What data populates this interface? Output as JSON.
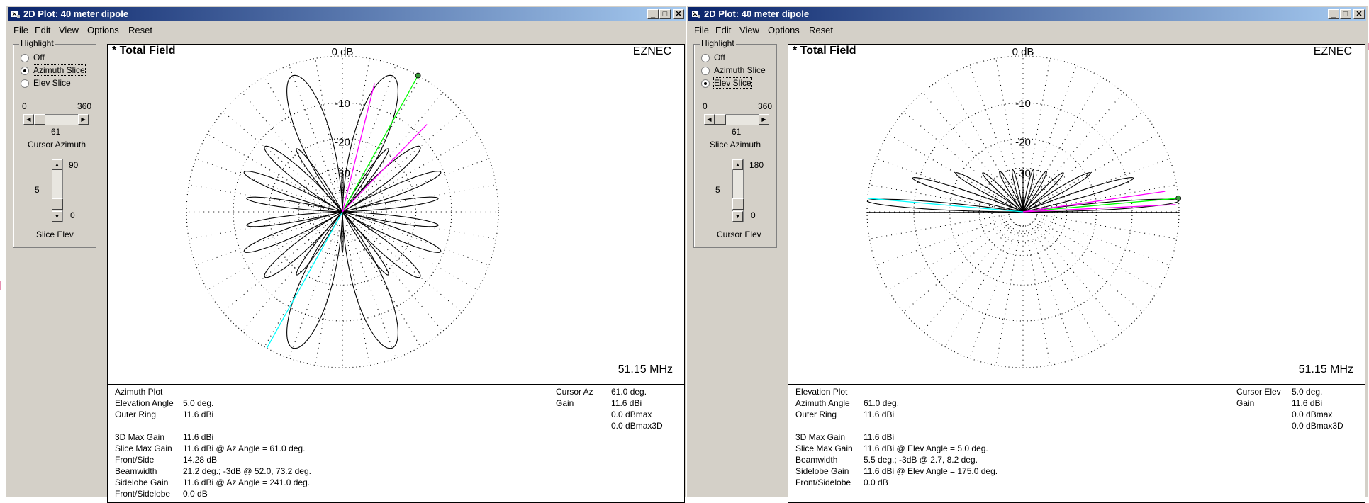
{
  "windows": [
    {
      "title": "2D Plot: 40 meter dipole",
      "menu": [
        "File",
        "Edit",
        "View",
        "Options",
        "Reset"
      ],
      "highlight_label": "Highlight",
      "radios": [
        {
          "label": "Off",
          "selected": false
        },
        {
          "label": "Azimuth Slice",
          "selected": true
        },
        {
          "label": "Elev Slice",
          "selected": false
        }
      ],
      "slider": {
        "min": "0",
        "max": "360",
        "value": "61",
        "label": "Cursor Azimuth"
      },
      "vslider": {
        "top": "90",
        "value": "5",
        "bottom": "0",
        "label": "Slice Elev"
      },
      "plot": {
        "title": "* Total Field",
        "brand": "EZNEC",
        "frequency": "51.15 MHz",
        "ring_labels": [
          "0 dB",
          "-10",
          "-20",
          "-30"
        ],
        "mode": "azimuth"
      },
      "info_left": [
        [
          "Azimuth Plot",
          ""
        ],
        [
          "Elevation Angle",
          "5.0 deg."
        ],
        [
          "Outer Ring",
          "11.6 dBi"
        ],
        [
          "",
          ""
        ],
        [
          "3D Max Gain",
          "11.6 dBi"
        ],
        [
          "Slice Max Gain",
          "11.6 dBi @ Az Angle = 61.0 deg."
        ],
        [
          "Front/Side",
          "14.28 dB"
        ],
        [
          "Beamwidth",
          "21.2 deg.; -3dB @ 52.0, 73.2 deg."
        ],
        [
          "Sidelobe Gain",
          "11.6 dBi @ Az Angle = 241.0 deg."
        ],
        [
          "Front/Sidelobe",
          "0.0 dB"
        ]
      ],
      "info_right": [
        [
          "Cursor Az",
          "61.0 deg."
        ],
        [
          "Gain",
          "11.6 dBi"
        ],
        [
          "",
          "0.0 dBmax"
        ],
        [
          "",
          "0.0 dBmax3D"
        ]
      ]
    },
    {
      "title": "2D Plot: 40 meter dipole",
      "menu": [
        "File",
        "Edit",
        "View",
        "Options",
        "Reset"
      ],
      "highlight_label": "Highlight",
      "radios": [
        {
          "label": "Off",
          "selected": false
        },
        {
          "label": "Azimuth Slice",
          "selected": false
        },
        {
          "label": "Elev Slice",
          "selected": true
        }
      ],
      "slider": {
        "min": "0",
        "max": "360",
        "value": "61",
        "label": "Slice Azimuth"
      },
      "vslider": {
        "top": "180",
        "value": "5",
        "bottom": "0",
        "label": "Cursor Elev"
      },
      "plot": {
        "title": "* Total Field",
        "brand": "EZNEC",
        "frequency": "51.15 MHz",
        "ring_labels": [
          "0 dB",
          "-10",
          "-20",
          "-30"
        ],
        "mode": "elevation"
      },
      "info_left": [
        [
          "Elevation Plot",
          ""
        ],
        [
          "Azimuth Angle",
          "61.0 deg."
        ],
        [
          "Outer Ring",
          "11.6 dBi"
        ],
        [
          "",
          ""
        ],
        [
          "3D Max Gain",
          "11.6 dBi"
        ],
        [
          "Slice Max Gain",
          "11.6 dBi @ Elev Angle = 5.0 deg."
        ],
        [
          "Beamwidth",
          "5.5 deg.; -3dB @ 2.7, 8.2 deg."
        ],
        [
          "Sidelobe Gain",
          "11.6 dBi @ Elev Angle = 175.0 deg."
        ],
        [
          "Front/Sidelobe",
          "0.0 dB"
        ]
      ],
      "info_right": [
        [
          "Cursor Elev",
          "5.0 deg."
        ],
        [
          "Gain",
          "11.6 dBi"
        ],
        [
          "",
          "0.0 dBmax"
        ],
        [
          "",
          "0.0 dBmax3D"
        ]
      ]
    }
  ],
  "colors": {
    "titlebar_start": "#0a246a",
    "titlebar_end": "#a6caf0",
    "face": "#d4d0c8",
    "cursor_line": "#00ffff",
    "beam_line": "#ff00ff",
    "max_line": "#00ff00",
    "ground_line": "#000000"
  },
  "icons": [
    "window-icon",
    "minimize-icon",
    "maximize-icon",
    "close-icon",
    "scroll-left-icon",
    "scroll-right-icon",
    "scroll-up-icon",
    "scroll-down-icon"
  ]
}
